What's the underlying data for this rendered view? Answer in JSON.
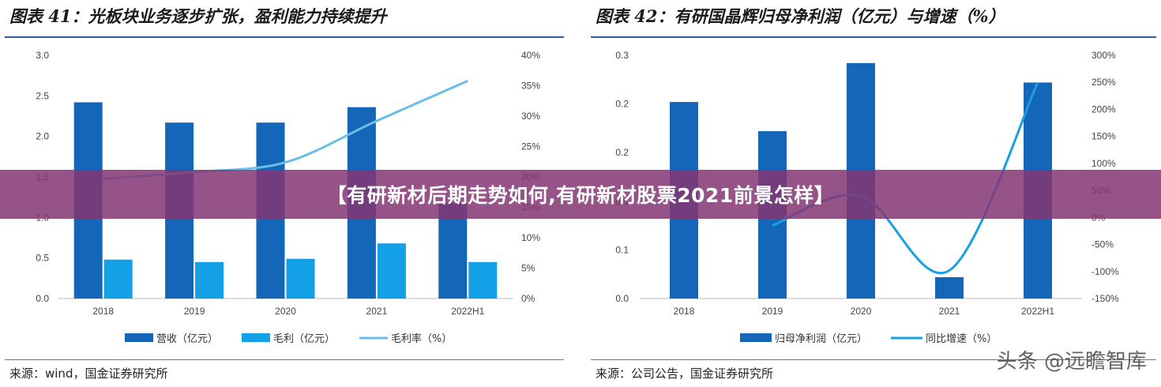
{
  "banner": {
    "text": "【有研新材后期走势如何,有研新材股票2021前景怎样】"
  },
  "watermark": {
    "text": "头条 @远瞻智库"
  },
  "panels": [
    {
      "title": "图表 41：光板块业务逐步扩张，盈利能力持续提升",
      "source": "来源：wind，国金证券研究所"
    },
    {
      "title": "图表 42：有研国晶辉归母净利润（亿元）与增速（%）",
      "source": "来源：公司公告，国金证券研究所"
    }
  ],
  "colors": {
    "dark_bar": "#1467b8",
    "light_bar": "#14a0e6",
    "light_line": "#6cbde8",
    "line": "#1aa0e0"
  },
  "chart_data": [
    {
      "type": "bar",
      "categories": [
        "2018",
        "2019",
        "2020",
        "2021",
        "2022H1"
      ],
      "left_ticks": [
        "3.0",
        "2.5",
        "2.0",
        "1.5",
        "1.0",
        "0.5",
        "0.0"
      ],
      "right_ticks": [
        "40%",
        "35%",
        "30%",
        "25%",
        "20%",
        "15%",
        "10%",
        "5%",
        "0%"
      ],
      "ylim_left": [
        0,
        3.0
      ],
      "ylim_right": [
        0,
        40
      ],
      "grid": false,
      "legend_position": "bottom",
      "series": [
        {
          "name": "营收（亿元）",
          "kind": "bar",
          "axis": "left",
          "color": "#1467b8",
          "values": [
            2.42,
            2.17,
            2.17,
            2.36,
            1.18
          ]
        },
        {
          "name": "毛利（亿元）",
          "kind": "bar",
          "axis": "left",
          "color": "#14a0e6",
          "values": [
            0.48,
            0.45,
            0.49,
            0.68,
            0.45
          ]
        },
        {
          "name": "毛利率（%）",
          "kind": "line",
          "axis": "right",
          "color": "#6cbde8",
          "values": [
            19.7,
            20.8,
            22.4,
            29.2,
            35.8
          ]
        }
      ]
    },
    {
      "type": "bar",
      "categories": [
        "2018",
        "2019",
        "2020",
        "2021",
        "2022H1"
      ],
      "left_ticks": [
        "0.3",
        "0.2",
        "0.2",
        "0.1",
        "0.1",
        "0.0"
      ],
      "right_ticks": [
        "300%",
        "250%",
        "200%",
        "150%",
        "100%",
        "50%",
        "0%",
        "-50%",
        "-100%",
        "-150%"
      ],
      "ylim_left": [
        0,
        0.25
      ],
      "ylim_right": [
        -150,
        300
      ],
      "grid": false,
      "legend_position": "bottom",
      "series": [
        {
          "name": "归母净利润（亿元）",
          "kind": "bar",
          "axis": "left",
          "color": "#1467b8",
          "values": [
            0.202,
            0.172,
            0.242,
            0.022,
            0.222
          ]
        },
        {
          "name": "同比增速（%）",
          "kind": "line",
          "axis": "right",
          "color": "#1aa0e0",
          "values": [
            null,
            -15,
            40,
            -98,
            250
          ]
        }
      ]
    }
  ]
}
